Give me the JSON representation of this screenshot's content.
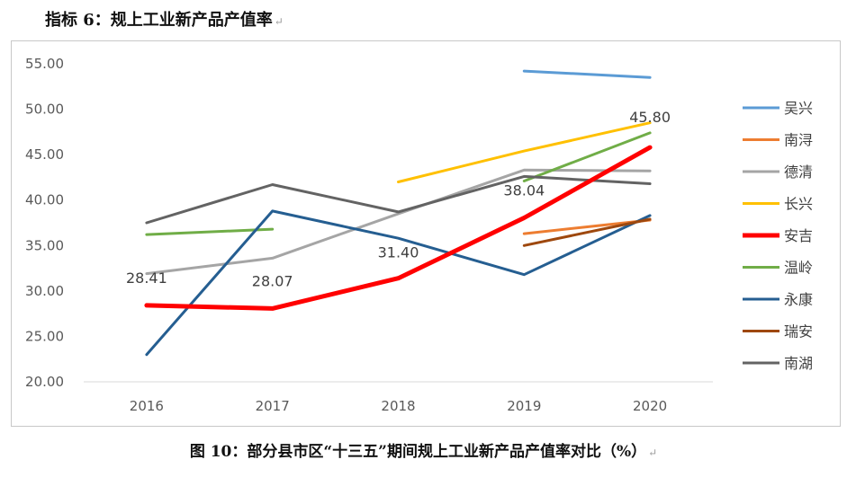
{
  "page": {
    "heading": "指标 6：规上工业新产品产值率",
    "caption": "图 10：部分县市区“十三五”期间规上工业新产品产值率对比（%）",
    "paragraph_mark": "↵"
  },
  "chart_data": {
    "type": "line",
    "title": "",
    "xlabel": "",
    "ylabel": "",
    "categories": [
      "2016",
      "2017",
      "2018",
      "2019",
      "2020"
    ],
    "ylim": [
      20,
      55
    ],
    "yticks": [
      "20.00",
      "25.00",
      "30.00",
      "35.00",
      "40.00",
      "45.00",
      "50.00",
      "55.00"
    ],
    "grid": false,
    "legend_position": "right",
    "series": [
      {
        "name": "吴兴",
        "color": "#5b9bd5",
        "values": [
          null,
          null,
          null,
          54.2,
          53.5
        ]
      },
      {
        "name": "南浔",
        "color": "#ed7d31",
        "values": [
          null,
          null,
          null,
          36.3,
          37.8
        ]
      },
      {
        "name": "德清",
        "color": "#a5a5a5",
        "values": [
          31.9,
          33.6,
          38.5,
          43.3,
          43.2
        ]
      },
      {
        "name": "长兴",
        "color": "#ffc000",
        "values": [
          null,
          null,
          42.0,
          45.4,
          48.5
        ]
      },
      {
        "name": "安吉",
        "color": "#ff0000",
        "values": [
          28.41,
          28.07,
          31.4,
          38.04,
          45.8
        ],
        "bold": true
      },
      {
        "name": "温岭",
        "color": "#70ad47",
        "values": [
          36.2,
          36.8,
          null,
          42.1,
          47.4
        ]
      },
      {
        "name": "永康",
        "color": "#255e91",
        "values": [
          23.0,
          38.8,
          35.8,
          31.8,
          38.3
        ]
      },
      {
        "name": "瑞安",
        "color": "#9e480e",
        "values": [
          null,
          null,
          null,
          35.0,
          37.9
        ]
      },
      {
        "name": "南湖",
        "color": "#636363",
        "values": [
          37.5,
          41.7,
          38.7,
          42.6,
          41.8
        ]
      }
    ],
    "data_labels": [
      {
        "series": "安吉",
        "category": "2016",
        "text": "28.41"
      },
      {
        "series": "安吉",
        "category": "2017",
        "text": "28.07"
      },
      {
        "series": "安吉",
        "category": "2018",
        "text": "31.40"
      },
      {
        "series": "安吉",
        "category": "2019",
        "text": "38.04"
      },
      {
        "series": "安吉",
        "category": "2020",
        "text": "45.80"
      }
    ]
  }
}
